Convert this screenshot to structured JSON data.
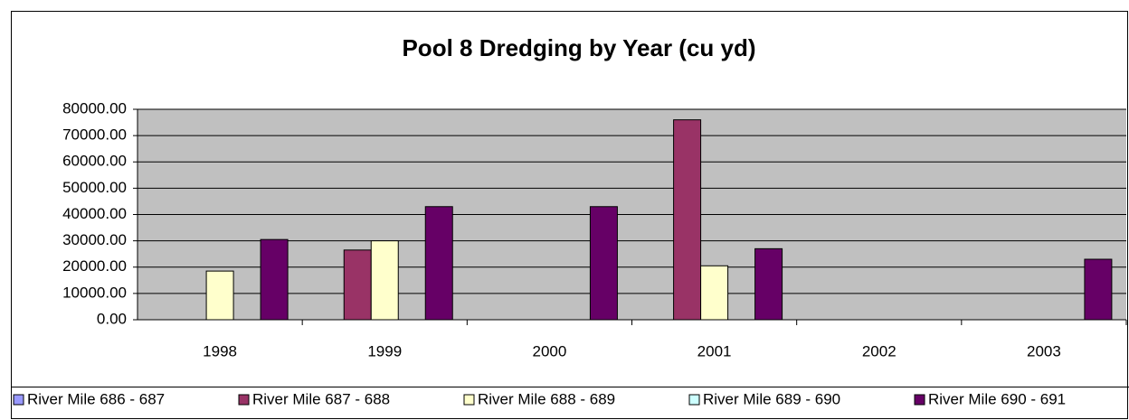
{
  "chart_data": {
    "type": "bar",
    "title": "Pool 8 Dredging by Year (cu yd)",
    "categories": [
      "1998",
      "1999",
      "2000",
      "2001",
      "2002",
      "2003"
    ],
    "series": [
      {
        "name": "River Mile 686 - 687",
        "color": "#9999ff",
        "values": [
          0,
          0,
          0,
          0,
          0,
          0
        ]
      },
      {
        "name": "River Mile 687 - 688",
        "color": "#993366",
        "values": [
          0,
          26500,
          0,
          76000,
          0,
          0
        ]
      },
      {
        "name": "River Mile 688 - 689",
        "color": "#ffffcc",
        "values": [
          18500,
          30000,
          0,
          20500,
          0,
          0
        ]
      },
      {
        "name": "River Mile 689 - 690",
        "color": "#ccffff",
        "values": [
          0,
          0,
          0,
          0,
          0,
          0
        ]
      },
      {
        "name": "River Mile 690 - 691",
        "color": "#660066",
        "values": [
          30500,
          43000,
          43000,
          27000,
          0,
          23000
        ]
      }
    ],
    "ylim": [
      0,
      80000
    ],
    "yticks": [
      {
        "value": 0,
        "label": "0.00"
      },
      {
        "value": 10000,
        "label": "10000.00"
      },
      {
        "value": 20000,
        "label": "20000.00"
      },
      {
        "value": 30000,
        "label": "30000.00"
      },
      {
        "value": 40000,
        "label": "40000.00"
      },
      {
        "value": 50000,
        "label": "50000.00"
      },
      {
        "value": 60000,
        "label": "60000.00"
      },
      {
        "value": 70000,
        "label": "70000.00"
      },
      {
        "value": 80000,
        "label": "80000.00"
      }
    ],
    "grid": true,
    "plot_background": "#c0c0c0",
    "legend": "bottom"
  }
}
